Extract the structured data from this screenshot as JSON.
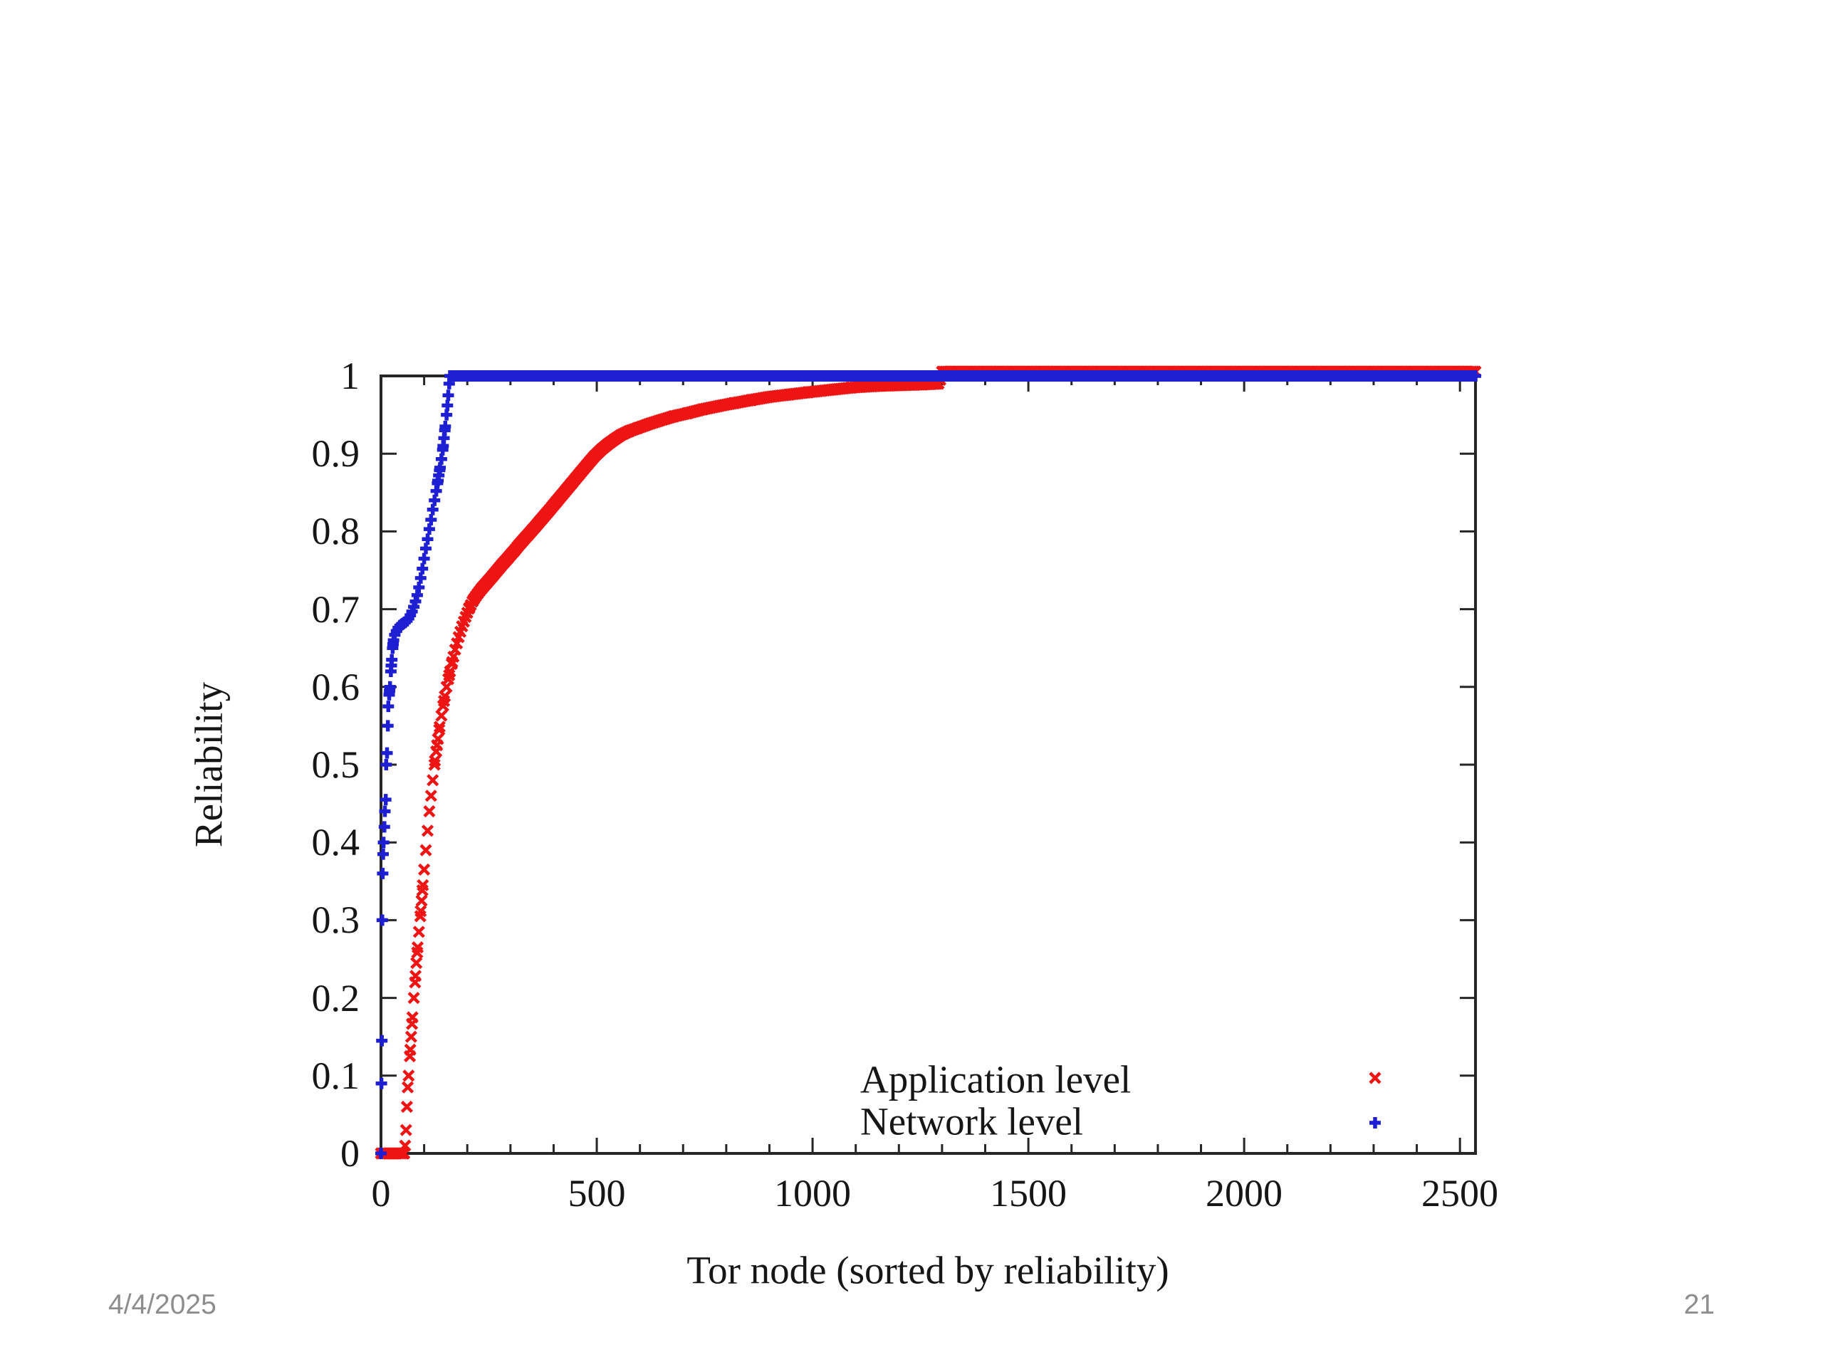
{
  "slide": {
    "date": "4/4/2025",
    "page_number": "21",
    "background_color": "#ffffff"
  },
  "chart_data": {
    "type": "scatter",
    "title": "",
    "xlabel": "Tor node (sorted by reliability)",
    "ylabel": "Reliability",
    "xlim": [
      0,
      2536
    ],
    "ylim": [
      0,
      1
    ],
    "grid": false,
    "axis_color": "#262626",
    "x_minor_tick_step": 100,
    "x_ticks": [
      {
        "value": 0,
        "label": "0"
      },
      {
        "value": 500,
        "label": "500"
      },
      {
        "value": 1000,
        "label": "1000"
      },
      {
        "value": 1500,
        "label": "1500"
      },
      {
        "value": 2000,
        "label": "2000"
      },
      {
        "value": 2500,
        "label": "2500"
      }
    ],
    "y_ticks": [
      {
        "value": 0,
        "label": "0"
      },
      {
        "value": 0.1,
        "label": "0.1"
      },
      {
        "value": 0.2,
        "label": "0.2"
      },
      {
        "value": 0.3,
        "label": "0.3"
      },
      {
        "value": 0.4,
        "label": "0.4"
      },
      {
        "value": 0.5,
        "label": "0.5"
      },
      {
        "value": 0.6,
        "label": "0.6"
      },
      {
        "value": 0.7,
        "label": "0.7"
      },
      {
        "value": 0.8,
        "label": "0.8"
      },
      {
        "value": 0.9,
        "label": "0.9"
      },
      {
        "value": 1,
        "label": "1"
      }
    ],
    "legend": {
      "position": "inside-bottom-right",
      "marker_column_x": 1931
    },
    "series": [
      {
        "name": "Application level",
        "marker": "x",
        "color": "#ee1414",
        "anchors": [
          [
            0,
            0
          ],
          [
            54,
            0
          ],
          [
            56,
            0.01
          ],
          [
            58,
            0.03
          ],
          [
            60,
            0.06
          ],
          [
            62,
            0.085
          ],
          [
            64,
            0.1
          ],
          [
            67,
            0.125
          ],
          [
            70,
            0.15
          ],
          [
            73,
            0.175
          ],
          [
            76,
            0.2
          ],
          [
            79,
            0.22
          ],
          [
            82,
            0.245
          ],
          [
            85,
            0.265
          ],
          [
            88,
            0.285
          ],
          [
            91,
            0.305
          ],
          [
            94,
            0.325
          ],
          [
            97,
            0.345
          ],
          [
            100,
            0.365
          ],
          [
            104,
            0.39
          ],
          [
            108,
            0.415
          ],
          [
            112,
            0.44
          ],
          [
            116,
            0.46
          ],
          [
            120,
            0.48
          ],
          [
            125,
            0.505
          ],
          [
            130,
            0.525
          ],
          [
            135,
            0.545
          ],
          [
            140,
            0.563
          ],
          [
            146,
            0.582
          ],
          [
            152,
            0.6
          ],
          [
            158,
            0.615
          ],
          [
            165,
            0.632
          ],
          [
            172,
            0.648
          ],
          [
            180,
            0.664
          ],
          [
            188,
            0.678
          ],
          [
            196,
            0.69
          ],
          [
            205,
            0.702
          ],
          [
            214,
            0.712
          ],
          [
            224,
            0.72
          ],
          [
            234,
            0.727
          ],
          [
            245,
            0.734
          ],
          [
            256,
            0.741
          ],
          [
            268,
            0.749
          ],
          [
            280,
            0.757
          ],
          [
            293,
            0.765
          ],
          [
            307,
            0.774
          ],
          [
            322,
            0.784
          ],
          [
            338,
            0.794
          ],
          [
            354,
            0.804
          ],
          [
            371,
            0.815
          ],
          [
            388,
            0.826
          ],
          [
            406,
            0.838
          ],
          [
            424,
            0.85
          ],
          [
            442,
            0.862
          ],
          [
            460,
            0.874
          ],
          [
            478,
            0.886
          ],
          [
            495,
            0.897
          ],
          [
            510,
            0.905
          ],
          [
            525,
            0.912
          ],
          [
            540,
            0.918
          ],
          [
            556,
            0.924
          ],
          [
            575,
            0.929
          ],
          [
            595,
            0.933
          ],
          [
            620,
            0.938
          ],
          [
            648,
            0.943
          ],
          [
            678,
            0.948
          ],
          [
            710,
            0.952
          ],
          [
            745,
            0.957
          ],
          [
            780,
            0.961
          ],
          [
            818,
            0.965
          ],
          [
            858,
            0.969
          ],
          [
            900,
            0.973
          ],
          [
            945,
            0.976
          ],
          [
            990,
            0.979
          ],
          [
            1040,
            0.982
          ],
          [
            1090,
            0.985
          ],
          [
            1145,
            0.987
          ],
          [
            1200,
            0.988
          ],
          [
            1255,
            0.989
          ],
          [
            1292,
            0.99
          ],
          [
            1300,
            1.0
          ],
          [
            2536,
            1.0
          ]
        ]
      },
      {
        "name": "Network level",
        "marker": "+",
        "color": "#1e1ed2",
        "anchors": [
          [
            0,
            0
          ],
          [
            1,
            0.09
          ],
          [
            2,
            0.145
          ],
          [
            3,
            0.3
          ],
          [
            4,
            0.36
          ],
          [
            5,
            0.385
          ],
          [
            6,
            0.4
          ],
          [
            8,
            0.42
          ],
          [
            9,
            0.44
          ],
          [
            11,
            0.455
          ],
          [
            12,
            0.5
          ],
          [
            14,
            0.515
          ],
          [
            16,
            0.55
          ],
          [
            17,
            0.575
          ],
          [
            19,
            0.59
          ],
          [
            21,
            0.6
          ],
          [
            23,
            0.62
          ],
          [
            25,
            0.635
          ],
          [
            27,
            0.65
          ],
          [
            29,
            0.66
          ],
          [
            32,
            0.667
          ],
          [
            36,
            0.672
          ],
          [
            40,
            0.676
          ],
          [
            45,
            0.679
          ],
          [
            50,
            0.681
          ],
          [
            55,
            0.683
          ],
          [
            60,
            0.685
          ],
          [
            64,
            0.688
          ],
          [
            68,
            0.692
          ],
          [
            72,
            0.697
          ],
          [
            76,
            0.703
          ],
          [
            80,
            0.71
          ],
          [
            84,
            0.718
          ],
          [
            88,
            0.728
          ],
          [
            92,
            0.74
          ],
          [
            96,
            0.752
          ],
          [
            100,
            0.765
          ],
          [
            104,
            0.778
          ],
          [
            108,
            0.79
          ],
          [
            112,
            0.803
          ],
          [
            116,
            0.815
          ],
          [
            120,
            0.828
          ],
          [
            124,
            0.84
          ],
          [
            128,
            0.852
          ],
          [
            131,
            0.862
          ],
          [
            134,
            0.872
          ],
          [
            137,
            0.882
          ],
          [
            140,
            0.893
          ],
          [
            143,
            0.905
          ],
          [
            146,
            0.92
          ],
          [
            149,
            0.935
          ],
          [
            152,
            0.95
          ],
          [
            154,
            0.962
          ],
          [
            156,
            0.975
          ],
          [
            158,
            0.99
          ],
          [
            160,
            1.0
          ],
          [
            2536,
            1.0
          ]
        ]
      }
    ]
  }
}
